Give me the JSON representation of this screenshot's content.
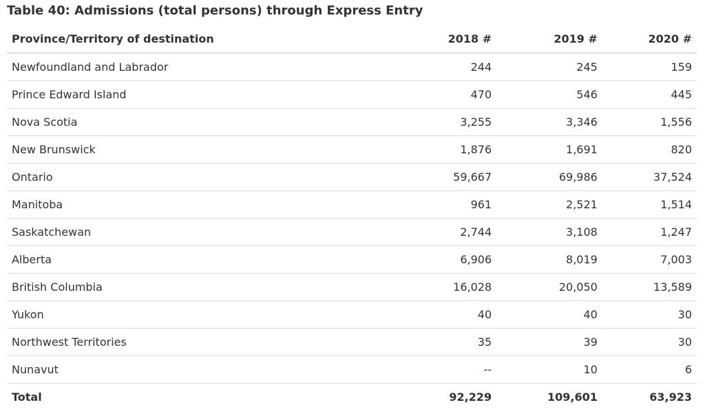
{
  "caption": "Table 40: Admissions (total persons) through Express Entry",
  "headers": [
    "Province/Territory of destination",
    "2018 #",
    "2019 #",
    "2020 #"
  ],
  "rows": [
    [
      "Newfoundland and Labrador",
      "244",
      "245",
      "159"
    ],
    [
      "Prince Edward Island",
      "470",
      "546",
      "445"
    ],
    [
      "Nova Scotia",
      "3,255",
      "3,346",
      "1,556"
    ],
    [
      "New Brunswick",
      "1,876",
      "1,691",
      "820"
    ],
    [
      "Ontario",
      "59,667",
      "69,986",
      "37,524"
    ],
    [
      "Manitoba",
      "961",
      "2,521",
      "1,514"
    ],
    [
      "Saskatchewan",
      "2,744",
      "3,108",
      "1,247"
    ],
    [
      "Alberta",
      "6,906",
      "8,019",
      "7,003"
    ],
    [
      "British Columbia",
      "16,028",
      "20,050",
      "13,589"
    ],
    [
      "Yukon",
      "40",
      "40",
      "30"
    ],
    [
      "Northwest Territories",
      "35",
      "39",
      "30"
    ],
    [
      "Nunavut",
      "--",
      "10",
      "6"
    ]
  ],
  "total": [
    "Total",
    "92,229",
    "109,601",
    "63,923"
  ]
}
